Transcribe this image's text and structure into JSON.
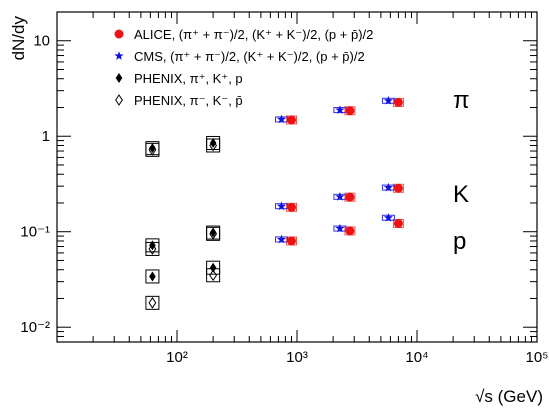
{
  "chart_data": {
    "type": "scatter",
    "title": "",
    "xlabel": "√s (GeV)",
    "ylabel": "dN/dy",
    "xscale": "log",
    "yscale": "log",
    "xlim": [
      10,
      100000
    ],
    "ylim": [
      0.007,
      20
    ],
    "grid": false,
    "legend_position": "top-left",
    "x_tick_labels": [
      "10²",
      "10³",
      "10⁴",
      "10⁵"
    ],
    "y_tick_labels": [
      "10⁻²",
      "10⁻¹",
      "1",
      "10"
    ],
    "legend": [
      {
        "id": "alice",
        "label": "ALICE, (π⁺ + π⁻)/2, (K⁺ + K⁻)/2, (p + p̄)/2",
        "marker": "circle",
        "color": "#ee1111"
      },
      {
        "id": "cms",
        "label": "CMS, (π⁺ + π⁻)/2, (K⁺ + K⁻)/2, (p + p̄)/2",
        "marker": "star",
        "color": "#1111dd"
      },
      {
        "id": "phenix_pos",
        "label": "PHENIX, π⁺, K⁺, p",
        "marker": "diamond",
        "color": "#000000"
      },
      {
        "id": "phenix_neg",
        "label": "PHENIX, π⁻, K⁻, p̄",
        "marker": "open-diamond",
        "color": "#000000"
      }
    ],
    "annotations": [
      "π",
      "K",
      "p"
    ],
    "series": [
      {
        "id": "alice",
        "points": [
          {
            "x": 900,
            "y": 1.48,
            "label": "π"
          },
          {
            "x": 2760,
            "y": 1.85,
            "label": "π"
          },
          {
            "x": 7000,
            "y": 2.26,
            "label": "π"
          },
          {
            "x": 900,
            "y": 0.18,
            "label": "K"
          },
          {
            "x": 2760,
            "y": 0.23,
            "label": "K"
          },
          {
            "x": 7000,
            "y": 0.285,
            "label": "K"
          },
          {
            "x": 900,
            "y": 0.08,
            "label": "p"
          },
          {
            "x": 2760,
            "y": 0.102,
            "label": "p"
          },
          {
            "x": 7000,
            "y": 0.122,
            "label": "p"
          }
        ]
      },
      {
        "id": "cms",
        "points": [
          {
            "x": 900,
            "y": 1.5,
            "label": "π"
          },
          {
            "x": 2760,
            "y": 1.88,
            "label": "π"
          },
          {
            "x": 7000,
            "y": 2.35,
            "label": "π"
          },
          {
            "x": 900,
            "y": 0.185,
            "label": "K"
          },
          {
            "x": 2760,
            "y": 0.232,
            "label": "K"
          },
          {
            "x": 7000,
            "y": 0.29,
            "label": "K"
          },
          {
            "x": 900,
            "y": 0.083,
            "label": "p"
          },
          {
            "x": 2760,
            "y": 0.108,
            "label": "p"
          },
          {
            "x": 7000,
            "y": 0.14,
            "label": "p"
          }
        ]
      },
      {
        "id": "phenix_pos",
        "points": [
          {
            "x": 62.4,
            "y": 0.75,
            "label": "π⁺"
          },
          {
            "x": 200,
            "y": 0.85,
            "label": "π⁺"
          },
          {
            "x": 62.4,
            "y": 0.072,
            "label": "K⁺"
          },
          {
            "x": 200,
            "y": 0.098,
            "label": "K⁺"
          },
          {
            "x": 62.4,
            "y": 0.034,
            "label": "p"
          },
          {
            "x": 200,
            "y": 0.042,
            "label": "p"
          }
        ]
      },
      {
        "id": "phenix_neg",
        "points": [
          {
            "x": 62.4,
            "y": 0.72,
            "label": "π⁻"
          },
          {
            "x": 200,
            "y": 0.8,
            "label": "π⁻"
          },
          {
            "x": 62.4,
            "y": 0.066,
            "label": "K⁻"
          },
          {
            "x": 200,
            "y": 0.095,
            "label": "K⁻"
          },
          {
            "x": 62.4,
            "y": 0.018,
            "label": "p̄"
          },
          {
            "x": 200,
            "y": 0.035,
            "label": "p̄"
          }
        ]
      }
    ]
  }
}
